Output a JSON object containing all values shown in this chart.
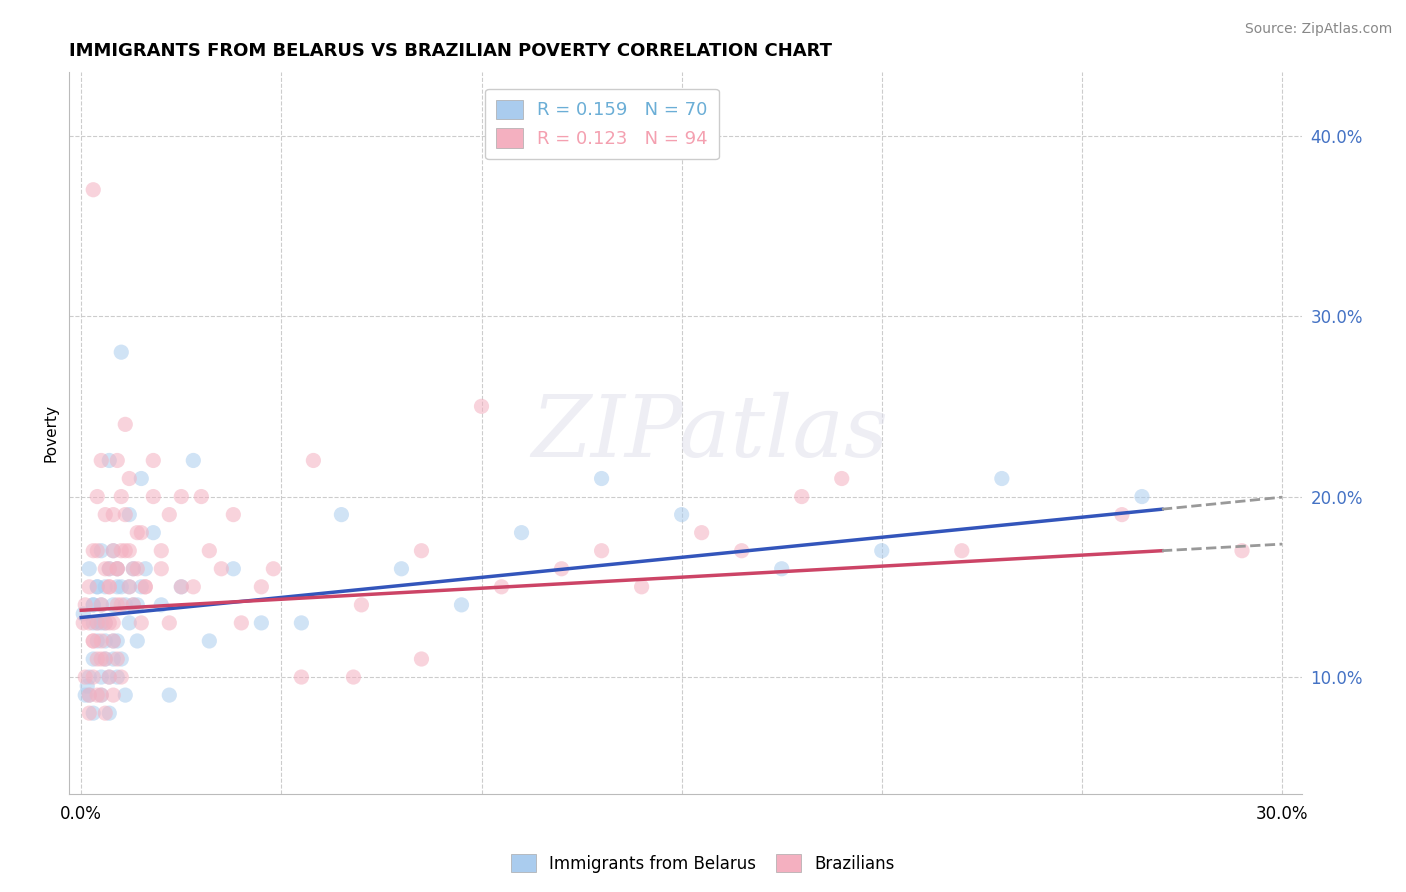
{
  "title": "IMMIGRANTS FROM BELARUS VS BRAZILIAN POVERTY CORRELATION CHART",
  "source_text": "Source: ZipAtlas.com",
  "ylabel": "Poverty",
  "xlim": [
    -0.003,
    0.305
  ],
  "ylim": [
    0.035,
    0.435
  ],
  "x_ticks": [
    0.0,
    0.3
  ],
  "x_tick_labels": [
    "0.0%",
    "30.0%"
  ],
  "y_ticks": [
    0.1,
    0.2,
    0.3,
    0.4
  ],
  "y_tick_labels": [
    "10.0%",
    "20.0%",
    "30.0%",
    "40.0%"
  ],
  "x_grid_ticks": [
    0.0,
    0.05,
    0.1,
    0.15,
    0.2,
    0.25,
    0.3
  ],
  "legend_entries": [
    {
      "label": "R = 0.159   N = 70",
      "color": "#6baed6"
    },
    {
      "label": "R = 0.123   N = 94",
      "color": "#f4a0b0"
    }
  ],
  "series1_color": "#aaccee",
  "series2_color": "#f4b0c0",
  "trendline1_color": "#3355bb",
  "trendline2_color": "#cc4466",
  "trendline_dashed_color": "#999999",
  "background_color": "#ffffff",
  "grid_color": "#cccccc",
  "watermark_text": "ZIPatlas",
  "scatter_alpha": 0.55,
  "scatter_size": 120,
  "trendline1_x0": 0.0,
  "trendline1_y0": 0.133,
  "trendline1_x1": 0.27,
  "trendline1_y1": 0.193,
  "trendline2_x0": 0.0,
  "trendline2_y0": 0.137,
  "trendline2_x1": 0.27,
  "trendline2_y1": 0.17,
  "trendline_ext_x1": 0.3,
  "series1_x": [
    0.0005,
    0.001,
    0.0015,
    0.002,
    0.002,
    0.003,
    0.003,
    0.003,
    0.004,
    0.004,
    0.005,
    0.005,
    0.005,
    0.006,
    0.006,
    0.007,
    0.007,
    0.008,
    0.008,
    0.009,
    0.009,
    0.01,
    0.01,
    0.011,
    0.012,
    0.012,
    0.013,
    0.014,
    0.015,
    0.016,
    0.018,
    0.02,
    0.022,
    0.025,
    0.028,
    0.032,
    0.038,
    0.045,
    0.055,
    0.065,
    0.08,
    0.095,
    0.11,
    0.13,
    0.15,
    0.175,
    0.2,
    0.23,
    0.265,
    0.005,
    0.006,
    0.007,
    0.008,
    0.009,
    0.01,
    0.011,
    0.012,
    0.013,
    0.014,
    0.015,
    0.003,
    0.004,
    0.005,
    0.006,
    0.002,
    0.003,
    0.004,
    0.007,
    0.008,
    0.009
  ],
  "series1_y": [
    0.135,
    0.09,
    0.095,
    0.16,
    0.1,
    0.14,
    0.13,
    0.08,
    0.15,
    0.12,
    0.14,
    0.09,
    0.13,
    0.11,
    0.15,
    0.08,
    0.22,
    0.11,
    0.14,
    0.1,
    0.12,
    0.28,
    0.15,
    0.09,
    0.15,
    0.19,
    0.14,
    0.14,
    0.21,
    0.16,
    0.18,
    0.14,
    0.09,
    0.15,
    0.22,
    0.12,
    0.16,
    0.13,
    0.13,
    0.19,
    0.16,
    0.14,
    0.18,
    0.21,
    0.19,
    0.16,
    0.17,
    0.21,
    0.2,
    0.17,
    0.13,
    0.16,
    0.12,
    0.15,
    0.11,
    0.14,
    0.13,
    0.16,
    0.12,
    0.15,
    0.11,
    0.13,
    0.1,
    0.12,
    0.09,
    0.14,
    0.15,
    0.1,
    0.17,
    0.16
  ],
  "series2_x": [
    0.0005,
    0.001,
    0.001,
    0.002,
    0.002,
    0.003,
    0.003,
    0.004,
    0.004,
    0.005,
    0.005,
    0.006,
    0.006,
    0.007,
    0.007,
    0.008,
    0.008,
    0.009,
    0.009,
    0.01,
    0.011,
    0.012,
    0.013,
    0.014,
    0.015,
    0.016,
    0.018,
    0.02,
    0.022,
    0.025,
    0.03,
    0.035,
    0.04,
    0.048,
    0.058,
    0.07,
    0.085,
    0.1,
    0.12,
    0.14,
    0.165,
    0.19,
    0.22,
    0.26,
    0.29,
    0.003,
    0.004,
    0.005,
    0.006,
    0.007,
    0.008,
    0.009,
    0.01,
    0.011,
    0.012,
    0.002,
    0.003,
    0.004,
    0.005,
    0.006,
    0.007,
    0.008,
    0.009,
    0.01,
    0.002,
    0.003,
    0.004,
    0.005,
    0.006,
    0.007,
    0.008,
    0.009,
    0.01,
    0.011,
    0.012,
    0.013,
    0.014,
    0.015,
    0.016,
    0.018,
    0.02,
    0.022,
    0.025,
    0.028,
    0.032,
    0.038,
    0.045,
    0.055,
    0.068,
    0.085,
    0.105,
    0.13,
    0.155,
    0.18
  ],
  "series2_y": [
    0.13,
    0.14,
    0.1,
    0.15,
    0.13,
    0.17,
    0.12,
    0.13,
    0.17,
    0.12,
    0.14,
    0.16,
    0.11,
    0.15,
    0.13,
    0.17,
    0.12,
    0.14,
    0.16,
    0.2,
    0.17,
    0.15,
    0.16,
    0.18,
    0.13,
    0.15,
    0.22,
    0.16,
    0.13,
    0.15,
    0.2,
    0.16,
    0.13,
    0.16,
    0.22,
    0.14,
    0.17,
    0.25,
    0.16,
    0.15,
    0.17,
    0.21,
    0.17,
    0.19,
    0.17,
    0.37,
    0.2,
    0.22,
    0.19,
    0.16,
    0.19,
    0.22,
    0.17,
    0.24,
    0.21,
    0.09,
    0.1,
    0.11,
    0.09,
    0.13,
    0.1,
    0.09,
    0.11,
    0.1,
    0.08,
    0.12,
    0.09,
    0.11,
    0.08,
    0.15,
    0.13,
    0.16,
    0.14,
    0.19,
    0.17,
    0.14,
    0.16,
    0.18,
    0.15,
    0.2,
    0.17,
    0.19,
    0.2,
    0.15,
    0.17,
    0.19,
    0.15,
    0.1,
    0.1,
    0.11,
    0.15,
    0.17,
    0.18,
    0.2
  ]
}
